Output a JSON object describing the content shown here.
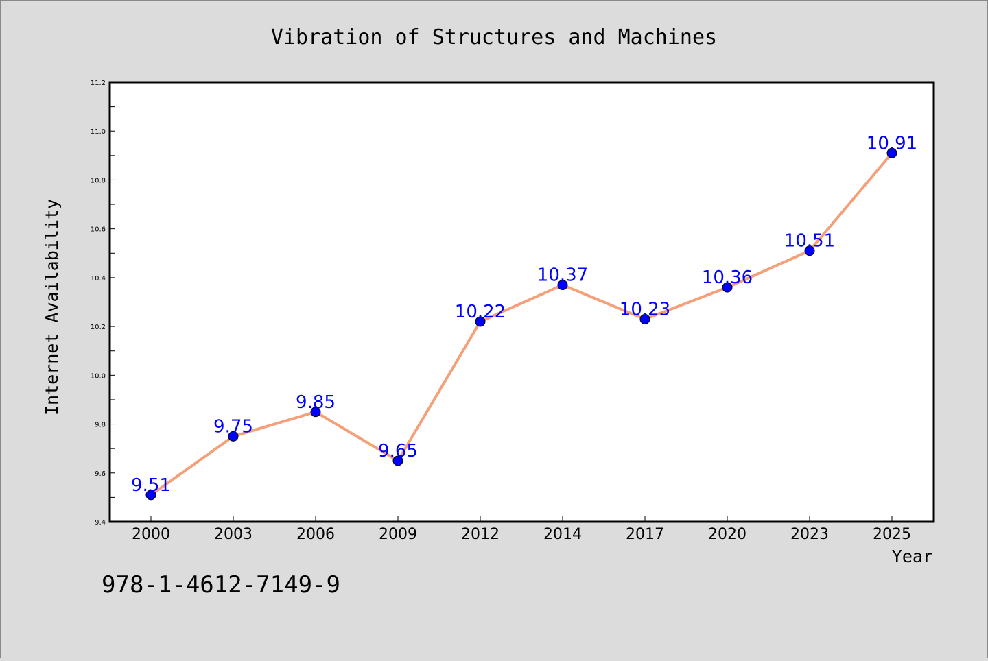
{
  "chart_data": {
    "type": "line",
    "title": "Vibration of Structures and Machines",
    "xlabel": "Year",
    "ylabel": "Internet Availability",
    "categories": [
      "2000",
      "2003",
      "2006",
      "2009",
      "2012",
      "2014",
      "2017",
      "2020",
      "2023",
      "2025"
    ],
    "series": [
      {
        "values": [
          9.51,
          9.75,
          9.85,
          9.65,
          10.22,
          10.37,
          10.23,
          10.36,
          10.51,
          10.91
        ]
      }
    ],
    "data_labels": [
      "9.51",
      "9.75",
      "9.85",
      "9.65",
      "10.22",
      "10.37",
      "10.23",
      "10.36",
      "10.51",
      "10.91"
    ],
    "ylim": [
      9.4,
      11.2
    ],
    "yticks": [
      "9.4",
      "9.6",
      "9.8",
      "10.0",
      "10.2",
      "10.4",
      "10.6",
      "10.8",
      "11.0",
      "11.2"
    ],
    "grid": false,
    "line_color": "#f4a07a",
    "marker_color": "#0000ff",
    "label_color": "#0000ff",
    "annotation": "978-1-4612-7149-9"
  }
}
